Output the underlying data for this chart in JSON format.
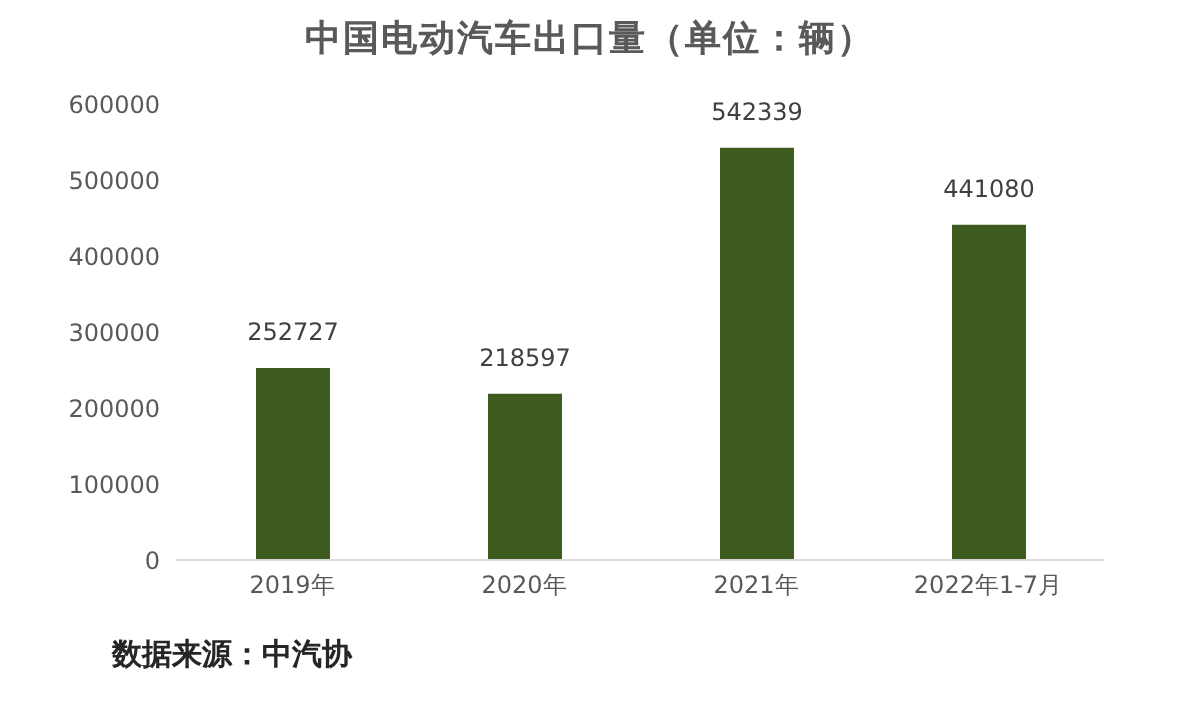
{
  "chart_data": {
    "type": "bar",
    "title": "中国电动汽车出口量（单位：辆）",
    "categories": [
      "2019年",
      "2020年",
      "2021年",
      "2022年1-7月"
    ],
    "values": [
      252727,
      218597,
      542339,
      441080
    ],
    "color": "#3d5a1f",
    "ylim": [
      0,
      600000
    ],
    "yticks": [
      0,
      100000,
      200000,
      300000,
      400000,
      500000,
      600000
    ],
    "grid": false,
    "legend": false,
    "data_labels": true,
    "annotations": [
      "数据来源：中汽协"
    ]
  }
}
